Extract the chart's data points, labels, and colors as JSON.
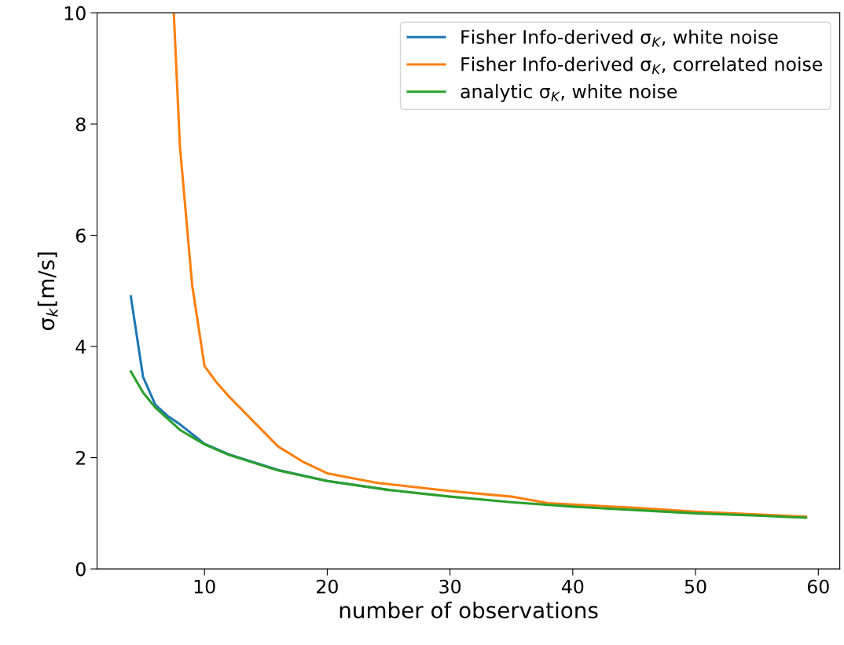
{
  "chart_data": {
    "type": "line",
    "xlabel": "number of observations",
    "ylabel": "σ$_{k}$[m/s]",
    "xlim": [
      1.25,
      61.75
    ],
    "xticks": [
      10,
      20,
      30,
      40,
      50,
      60
    ],
    "ylim": [
      0,
      10
    ],
    "yticks": [
      0,
      2,
      4,
      6,
      8,
      10
    ],
    "grid": false,
    "legend": "top right",
    "marker": "none",
    "line_style": "solid",
    "series": [
      {
        "name": "Fisher Info-derived σ$_{K}$, white noise",
        "color": "#1f77b4",
        "x": [
          4,
          5,
          6,
          7,
          8,
          10,
          12,
          16,
          20,
          25
        ],
        "values": [
          4.9,
          3.45,
          2.95,
          2.75,
          2.6,
          2.25,
          2.06,
          1.78,
          1.58,
          1.42
        ]
      },
      {
        "name": "Fisher Info-derived σ$_{K}$, correlated noise",
        "color": "#ff7f0e",
        "x": [
          7.5,
          8,
          9,
          10,
          11,
          12,
          14,
          16,
          18,
          20,
          24,
          30,
          35,
          38,
          45,
          50,
          59
        ],
        "values": [
          10,
          7.6,
          5.1,
          3.65,
          3.35,
          3.1,
          2.65,
          2.2,
          1.93,
          1.72,
          1.55,
          1.4,
          1.3,
          1.18,
          1.1,
          1.03,
          0.94
        ]
      },
      {
        "name": "analytic σ$_{K}$, white noise",
        "color": "#2ca02c",
        "x": [
          4,
          5,
          6,
          8,
          10,
          12,
          16,
          20,
          25,
          30,
          35,
          40,
          45,
          50,
          55,
          59
        ],
        "values": [
          3.55,
          3.17,
          2.9,
          2.5,
          2.24,
          2.05,
          1.77,
          1.58,
          1.42,
          1.3,
          1.2,
          1.12,
          1.06,
          1.0,
          0.96,
          0.92
        ]
      }
    ]
  }
}
